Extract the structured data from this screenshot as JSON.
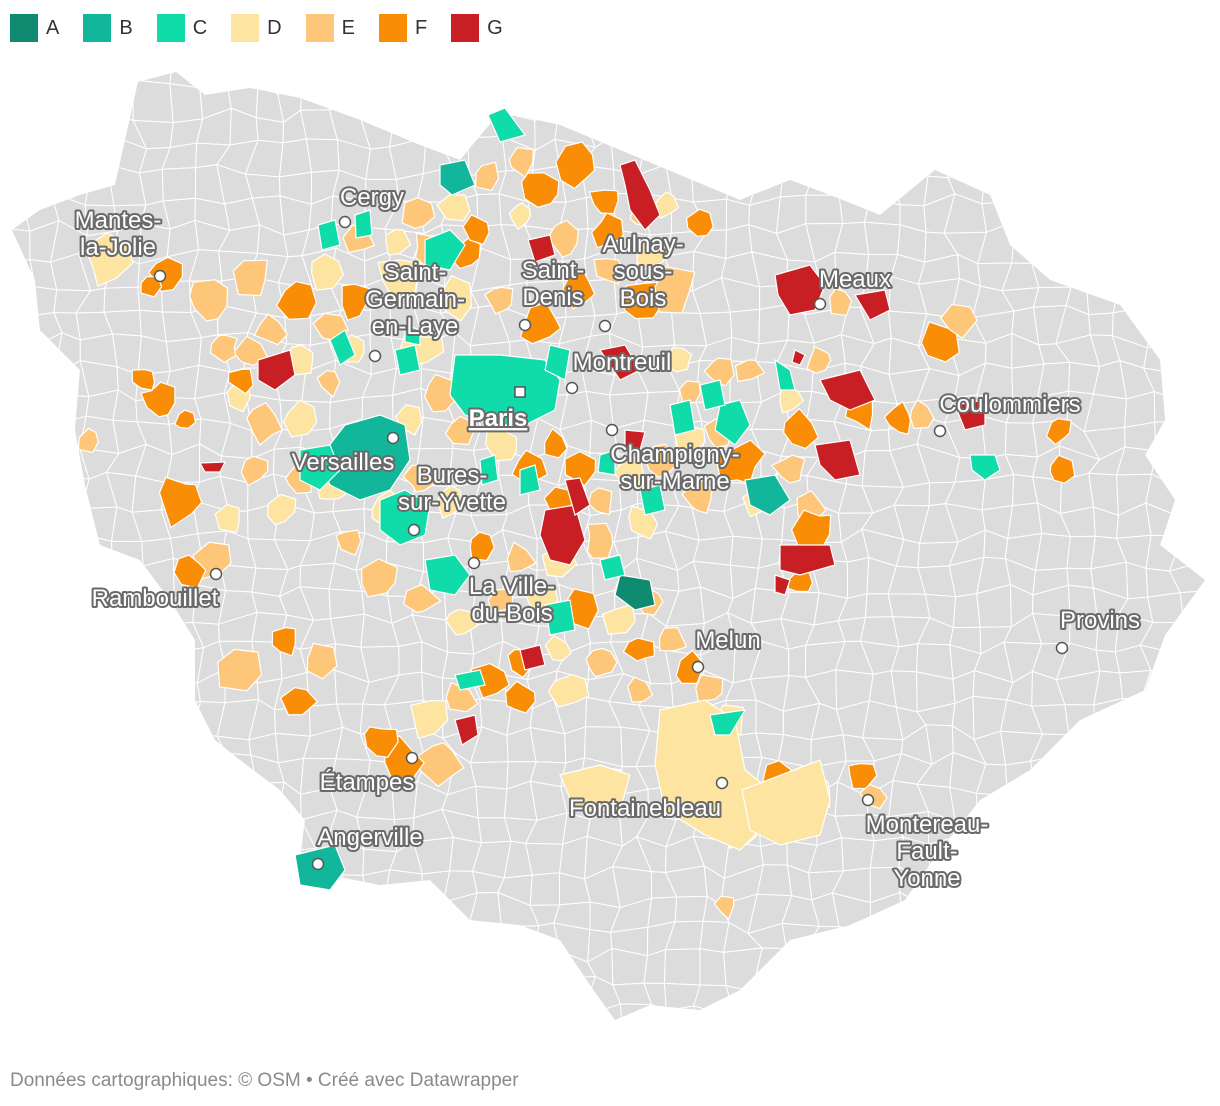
{
  "legend": [
    {
      "label": "A",
      "color": "#0e8b6f"
    },
    {
      "label": "B",
      "color": "#12b79b"
    },
    {
      "label": "C",
      "color": "#0fdca9"
    },
    {
      "label": "D",
      "color": "#fde4a0"
    },
    {
      "label": "E",
      "color": "#fdc678"
    },
    {
      "label": "F",
      "color": "#f98d05"
    },
    {
      "label": "G",
      "color": "#c81f24"
    }
  ],
  "colors": {
    "base": "#dcdcdc",
    "border": "#ffffff"
  },
  "cities": [
    {
      "name": "Cergy",
      "lines": [
        "Cergy"
      ]
    },
    {
      "name": "Mantes-la-Jolie",
      "lines": [
        "Mantes-",
        "la-Jolie"
      ]
    },
    {
      "name": "Saint-Germain-en-Laye",
      "lines": [
        "Saint-",
        "Germain-",
        "en-Laye"
      ]
    },
    {
      "name": "Saint-Denis",
      "lines": [
        "Saint-",
        "Denis"
      ]
    },
    {
      "name": "Aulnay-sous-Bois",
      "lines": [
        "Aulnay-",
        "sous-",
        "Bois"
      ]
    },
    {
      "name": "Meaux",
      "lines": [
        "Meaux"
      ]
    },
    {
      "name": "Montreuil",
      "lines": [
        "Montreuil"
      ]
    },
    {
      "name": "Paris",
      "lines": [
        "Paris"
      ]
    },
    {
      "name": "Coulommiers",
      "lines": [
        "Coulommiers"
      ]
    },
    {
      "name": "Versailles",
      "lines": [
        "Versailles"
      ]
    },
    {
      "name": "Bures-sur-Yvette",
      "lines": [
        "Bures-",
        "sur-Yvette"
      ]
    },
    {
      "name": "Champigny-sur-Marne",
      "lines": [
        "Champigny-",
        "sur-Marne"
      ]
    },
    {
      "name": "Rambouillet",
      "lines": [
        "Rambouillet"
      ]
    },
    {
      "name": "La Ville-du-Bois",
      "lines": [
        "La Ville-",
        "du-Bois"
      ]
    },
    {
      "name": "Provins",
      "lines": [
        "Provins"
      ]
    },
    {
      "name": "Melun",
      "lines": [
        "Melun"
      ]
    },
    {
      "name": "Étampes",
      "lines": [
        "Étampes"
      ]
    },
    {
      "name": "Fontainebleau",
      "lines": [
        "Fontainebleau"
      ]
    },
    {
      "name": "Montereau-Fault-Yonne",
      "lines": [
        "Montereau-",
        "Fault-",
        "Yonne"
      ]
    },
    {
      "name": "Angerville",
      "lines": [
        "Angerville"
      ]
    }
  ],
  "footer": {
    "text": "Données cartographiques: © OSM  • Créé avec Datawrapper"
  }
}
